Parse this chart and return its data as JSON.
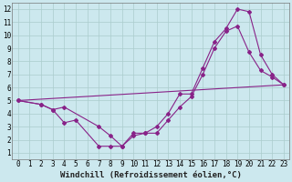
{
  "xlabel": "Windchill (Refroidissement éolien,°C)",
  "bg_color": "#cce8ee",
  "grid_color": "#aacccc",
  "line_color": "#882288",
  "xlim": [
    -0.5,
    23.5
  ],
  "ylim": [
    0.5,
    12.5
  ],
  "xticks": [
    0,
    1,
    2,
    3,
    4,
    5,
    6,
    7,
    8,
    9,
    10,
    11,
    12,
    13,
    14,
    15,
    16,
    17,
    18,
    19,
    20,
    21,
    22,
    23
  ],
  "yticks": [
    1,
    2,
    3,
    4,
    5,
    6,
    7,
    8,
    9,
    10,
    11,
    12
  ],
  "line1_x": [
    0,
    23
  ],
  "line1_y": [
    5,
    6.2
  ],
  "line2_x": [
    0,
    2,
    3,
    4,
    5,
    7,
    8,
    9,
    10,
    11,
    12,
    13,
    14,
    15,
    16,
    17,
    18,
    19,
    20,
    21,
    22,
    23
  ],
  "line2_y": [
    5,
    4.7,
    4.3,
    3.3,
    3.5,
    1.5,
    1.5,
    1.5,
    2.5,
    2.5,
    3.0,
    4.0,
    5.5,
    5.5,
    7.5,
    9.5,
    10.5,
    12.0,
    11.8,
    8.5,
    7.0,
    6.2
  ],
  "line3_x": [
    0,
    2,
    3,
    4,
    7,
    8,
    9,
    10,
    11,
    12,
    13,
    14,
    15,
    16,
    17,
    18,
    19,
    20,
    21,
    22,
    23
  ],
  "line3_y": [
    5,
    4.7,
    4.3,
    4.5,
    3.0,
    2.3,
    1.5,
    2.3,
    2.5,
    2.5,
    3.5,
    4.5,
    5.3,
    7.0,
    9.0,
    10.3,
    10.7,
    8.7,
    7.3,
    6.8,
    6.2
  ],
  "font_family": "monospace",
  "tick_fontsize": 5.5,
  "xlabel_fontsize": 6.5
}
